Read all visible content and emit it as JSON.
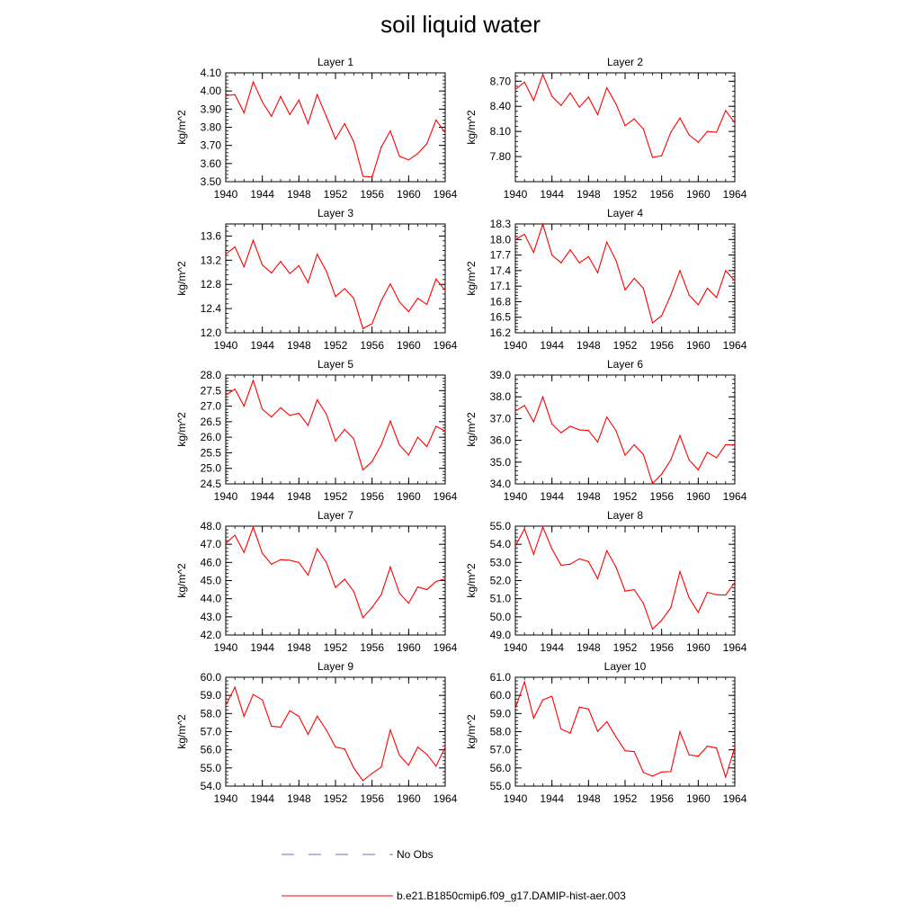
{
  "title": "soil liquid water",
  "legend": {
    "entries": [
      {
        "label": "No Obs",
        "color": "#6f6fb8",
        "style": "dashed"
      },
      {
        "label": "b.e21.B1850cmip6.f09_g17.DAMIP-hist-aer.003",
        "color": "#ff0000",
        "style": "solid"
      }
    ]
  },
  "chart_data": [
    {
      "type": "line",
      "title": "Layer 1",
      "ylabel": "kg/m^2",
      "xlim": [
        1940,
        1964
      ],
      "ylim": [
        3.5,
        4.1
      ],
      "xticks": [
        "1940",
        "1944",
        "1948",
        "1952",
        "1956",
        "1960",
        "1964"
      ],
      "yticks": [
        "3.50",
        "3.60",
        "3.70",
        "3.80",
        "3.90",
        "4.00",
        "4.10"
      ],
      "x": [
        1940,
        1941,
        1942,
        1943,
        1944,
        1945,
        1946,
        1947,
        1948,
        1949,
        1950,
        1951,
        1952,
        1953,
        1954,
        1955,
        1956,
        1957,
        1958,
        1959,
        1960,
        1961,
        1962,
        1963,
        1964
      ],
      "series": [
        {
          "name": "b.e21.B1850cmip6.f09_g17.DAMIP-hist-aer.003",
          "color": "#ff0000",
          "values": [
            3.975,
            3.98,
            3.88,
            4.05,
            3.94,
            3.86,
            3.97,
            3.87,
            3.95,
            3.82,
            3.98,
            3.86,
            3.735,
            3.82,
            3.72,
            3.53,
            3.525,
            3.69,
            3.78,
            3.64,
            3.62,
            3.655,
            3.71,
            3.84,
            3.77
          ]
        }
      ]
    },
    {
      "type": "line",
      "title": "Layer 2",
      "ylabel": "kg/m^2",
      "xlim": [
        1940,
        1964
      ],
      "ylim": [
        7.5,
        8.8
      ],
      "xticks": [
        "1940",
        "1944",
        "1948",
        "1952",
        "1956",
        "1960",
        "1964"
      ],
      "yticks": [
        "7.80",
        "8.10",
        "8.40",
        "8.70"
      ],
      "x": [
        1940,
        1941,
        1942,
        1943,
        1944,
        1945,
        1946,
        1947,
        1948,
        1949,
        1950,
        1951,
        1952,
        1953,
        1954,
        1955,
        1956,
        1957,
        1958,
        1959,
        1960,
        1961,
        1962,
        1963,
        1964
      ],
      "series": [
        {
          "name": "b.e21.B1850cmip6.f09_g17.DAMIP-hist-aer.003",
          "color": "#ff0000",
          "values": [
            8.6,
            8.69,
            8.47,
            8.78,
            8.52,
            8.41,
            8.56,
            8.39,
            8.51,
            8.3,
            8.62,
            8.43,
            8.17,
            8.25,
            8.13,
            7.79,
            7.81,
            8.09,
            8.26,
            8.06,
            7.97,
            8.1,
            8.09,
            8.35,
            8.2
          ]
        }
      ]
    },
    {
      "type": "line",
      "title": "Layer 3",
      "ylabel": "kg/m^2",
      "xlim": [
        1940,
        1964
      ],
      "ylim": [
        12.0,
        13.8
      ],
      "xticks": [
        "1940",
        "1944",
        "1948",
        "1952",
        "1956",
        "1960",
        "1964"
      ],
      "yticks": [
        "12.0",
        "12.4",
        "12.8",
        "13.2",
        "13.6"
      ],
      "x": [
        1940,
        1941,
        1942,
        1943,
        1944,
        1945,
        1946,
        1947,
        1948,
        1949,
        1950,
        1951,
        1952,
        1953,
        1954,
        1955,
        1956,
        1957,
        1958,
        1959,
        1960,
        1961,
        1962,
        1963,
        1964
      ],
      "series": [
        {
          "name": "b.e21.B1850cmip6.f09_g17.DAMIP-hist-aer.003",
          "color": "#ff0000",
          "values": [
            13.3,
            13.42,
            13.09,
            13.53,
            13.12,
            12.99,
            13.18,
            12.98,
            13.11,
            12.83,
            13.3,
            13.02,
            12.6,
            12.73,
            12.57,
            12.07,
            12.15,
            12.53,
            12.81,
            12.51,
            12.35,
            12.57,
            12.47,
            12.89,
            12.7
          ]
        }
      ]
    },
    {
      "type": "line",
      "title": "Layer 4",
      "ylabel": "kg/m^2",
      "xlim": [
        1940,
        1964
      ],
      "ylim": [
        16.2,
        18.3
      ],
      "xticks": [
        "1940",
        "1944",
        "1948",
        "1952",
        "1956",
        "1960",
        "1964"
      ],
      "yticks": [
        "16.2",
        "16.5",
        "16.8",
        "17.1",
        "17.4",
        "17.7",
        "18.0",
        "18.3"
      ],
      "x": [
        1940,
        1941,
        1942,
        1943,
        1944,
        1945,
        1946,
        1947,
        1948,
        1949,
        1950,
        1951,
        1952,
        1953,
        1954,
        1955,
        1956,
        1957,
        1958,
        1959,
        1960,
        1961,
        1962,
        1963,
        1964
      ],
      "series": [
        {
          "name": "b.e21.B1850cmip6.f09_g17.DAMIP-hist-aer.003",
          "color": "#ff0000",
          "values": [
            18.0,
            18.1,
            17.75,
            18.3,
            17.7,
            17.55,
            17.8,
            17.55,
            17.67,
            17.36,
            17.95,
            17.6,
            17.03,
            17.25,
            17.06,
            16.39,
            16.53,
            16.93,
            17.4,
            16.93,
            16.74,
            17.06,
            16.88,
            17.4,
            17.2
          ]
        }
      ]
    },
    {
      "type": "line",
      "title": "Layer 5",
      "ylabel": "kg/m^2",
      "xlim": [
        1940,
        1964
      ],
      "ylim": [
        24.5,
        28.0
      ],
      "xticks": [
        "1940",
        "1944",
        "1948",
        "1952",
        "1956",
        "1960",
        "1964"
      ],
      "yticks": [
        "24.5",
        "25.0",
        "25.5",
        "26.0",
        "26.5",
        "27.0",
        "27.5",
        "28.0"
      ],
      "x": [
        1940,
        1941,
        1942,
        1943,
        1944,
        1945,
        1946,
        1947,
        1948,
        1949,
        1950,
        1951,
        1952,
        1953,
        1954,
        1955,
        1956,
        1957,
        1958,
        1959,
        1960,
        1961,
        1962,
        1963,
        1964
      ],
      "series": [
        {
          "name": "b.e21.B1850cmip6.f09_g17.DAMIP-hist-aer.003",
          "color": "#ff0000",
          "values": [
            27.35,
            27.55,
            27.0,
            27.83,
            26.9,
            26.65,
            26.95,
            26.7,
            26.77,
            26.38,
            27.2,
            26.75,
            25.88,
            26.25,
            25.95,
            24.95,
            25.22,
            25.75,
            26.52,
            25.75,
            25.43,
            26.0,
            25.7,
            26.35,
            26.2
          ]
        }
      ]
    },
    {
      "type": "line",
      "title": "Layer 6",
      "ylabel": "kg/m^2",
      "xlim": [
        1940,
        1964
      ],
      "ylim": [
        34.0,
        39.0
      ],
      "xticks": [
        "1940",
        "1944",
        "1948",
        "1952",
        "1956",
        "1960",
        "1964"
      ],
      "yticks": [
        "34.0",
        "35.0",
        "36.0",
        "37.0",
        "38.0",
        "39.0"
      ],
      "x": [
        1940,
        1941,
        1942,
        1943,
        1944,
        1945,
        1946,
        1947,
        1948,
        1949,
        1950,
        1951,
        1952,
        1953,
        1954,
        1955,
        1956,
        1957,
        1958,
        1959,
        1960,
        1961,
        1962,
        1963,
        1964
      ],
      "series": [
        {
          "name": "b.e21.B1850cmip6.f09_g17.DAMIP-hist-aer.003",
          "color": "#ff0000",
          "values": [
            37.35,
            37.6,
            36.85,
            38.0,
            36.75,
            36.35,
            36.65,
            36.48,
            36.45,
            35.92,
            37.07,
            36.45,
            35.32,
            35.8,
            35.35,
            34.02,
            34.45,
            35.1,
            36.22,
            35.1,
            34.65,
            35.45,
            35.2,
            35.8,
            35.78
          ]
        }
      ]
    },
    {
      "type": "line",
      "title": "Layer 7",
      "ylabel": "kg/m^2",
      "xlim": [
        1940,
        1964
      ],
      "ylim": [
        42.0,
        48.0
      ],
      "xticks": [
        "1940",
        "1944",
        "1948",
        "1952",
        "1956",
        "1960",
        "1964"
      ],
      "yticks": [
        "42.0",
        "43.0",
        "44.0",
        "45.0",
        "46.0",
        "47.0",
        "48.0"
      ],
      "x": [
        1940,
        1941,
        1942,
        1943,
        1944,
        1945,
        1946,
        1947,
        1948,
        1949,
        1950,
        1951,
        1952,
        1953,
        1954,
        1955,
        1956,
        1957,
        1958,
        1959,
        1960,
        1961,
        1962,
        1963,
        1964
      ],
      "series": [
        {
          "name": "b.e21.B1850cmip6.f09_g17.DAMIP-hist-aer.003",
          "color": "#ff0000",
          "values": [
            47.05,
            47.5,
            46.55,
            47.95,
            46.5,
            45.9,
            46.15,
            46.12,
            46.0,
            45.3,
            46.75,
            46.0,
            44.62,
            45.08,
            44.4,
            42.95,
            43.52,
            44.22,
            45.75,
            44.3,
            43.75,
            44.65,
            44.5,
            44.95,
            45.1
          ]
        }
      ]
    },
    {
      "type": "line",
      "title": "Layer 8",
      "ylabel": "kg/m^2",
      "xlim": [
        1940,
        1964
      ],
      "ylim": [
        49.0,
        55.0
      ],
      "xticks": [
        "1940",
        "1944",
        "1948",
        "1952",
        "1956",
        "1960",
        "1964"
      ],
      "yticks": [
        "49.0",
        "50.0",
        "51.0",
        "52.0",
        "53.0",
        "54.0",
        "55.0"
      ],
      "x": [
        1940,
        1941,
        1942,
        1943,
        1944,
        1945,
        1946,
        1947,
        1948,
        1949,
        1950,
        1951,
        1952,
        1953,
        1954,
        1955,
        1956,
        1957,
        1958,
        1959,
        1960,
        1961,
        1962,
        1963,
        1964
      ],
      "series": [
        {
          "name": "b.e21.B1850cmip6.f09_g17.DAMIP-hist-aer.003",
          "color": "#ff0000",
          "values": [
            53.9,
            54.85,
            53.45,
            54.95,
            53.75,
            52.85,
            52.9,
            53.2,
            53.05,
            52.1,
            53.65,
            52.75,
            51.42,
            51.5,
            50.75,
            49.32,
            49.82,
            50.5,
            52.5,
            51.05,
            50.25,
            51.35,
            51.22,
            51.2,
            51.9
          ]
        }
      ]
    },
    {
      "type": "line",
      "title": "Layer 9",
      "ylabel": "kg/m^2",
      "xlim": [
        1940,
        1964
      ],
      "ylim": [
        54.0,
        60.0
      ],
      "xticks": [
        "1940",
        "1944",
        "1948",
        "1952",
        "1956",
        "1960",
        "1964"
      ],
      "yticks": [
        "54.0",
        "55.0",
        "56.0",
        "57.0",
        "58.0",
        "59.0",
        "60.0"
      ],
      "x": [
        1940,
        1941,
        1942,
        1943,
        1944,
        1945,
        1946,
        1947,
        1948,
        1949,
        1950,
        1951,
        1952,
        1953,
        1954,
        1955,
        1956,
        1957,
        1958,
        1959,
        1960,
        1961,
        1962,
        1963,
        1964
      ],
      "series": [
        {
          "name": "b.e21.B1850cmip6.f09_g17.DAMIP-hist-aer.003",
          "color": "#ff0000",
          "values": [
            58.45,
            59.45,
            57.85,
            59.05,
            58.75,
            57.3,
            57.25,
            58.15,
            57.85,
            56.85,
            57.85,
            57.1,
            56.15,
            56.05,
            55.0,
            54.3,
            54.7,
            55.05,
            57.1,
            55.7,
            55.15,
            56.15,
            55.75,
            55.1,
            56.15
          ]
        }
      ]
    },
    {
      "type": "line",
      "title": "Layer 10",
      "ylabel": "kg/m^2",
      "xlim": [
        1940,
        1964
      ],
      "ylim": [
        55.0,
        61.0
      ],
      "xticks": [
        "1940",
        "1944",
        "1948",
        "1952",
        "1956",
        "1960",
        "1964"
      ],
      "yticks": [
        "55.0",
        "56.0",
        "57.0",
        "58.0",
        "59.0",
        "60.0",
        "61.0"
      ],
      "x": [
        1940,
        1941,
        1942,
        1943,
        1944,
        1945,
        1946,
        1947,
        1948,
        1949,
        1950,
        1951,
        1952,
        1953,
        1954,
        1955,
        1956,
        1957,
        1958,
        1959,
        1960,
        1961,
        1962,
        1963,
        1964
      ],
      "series": [
        {
          "name": "b.e21.B1850cmip6.f09_g17.DAMIP-hist-aer.003",
          "color": "#ff0000",
          "values": [
            59.3,
            60.75,
            58.75,
            59.75,
            59.95,
            58.15,
            57.92,
            59.35,
            59.25,
            58.02,
            58.55,
            57.72,
            56.95,
            56.9,
            55.75,
            55.55,
            55.78,
            55.8,
            58.0,
            56.72,
            56.65,
            57.2,
            57.1,
            55.5,
            57.15
          ]
        }
      ]
    }
  ]
}
